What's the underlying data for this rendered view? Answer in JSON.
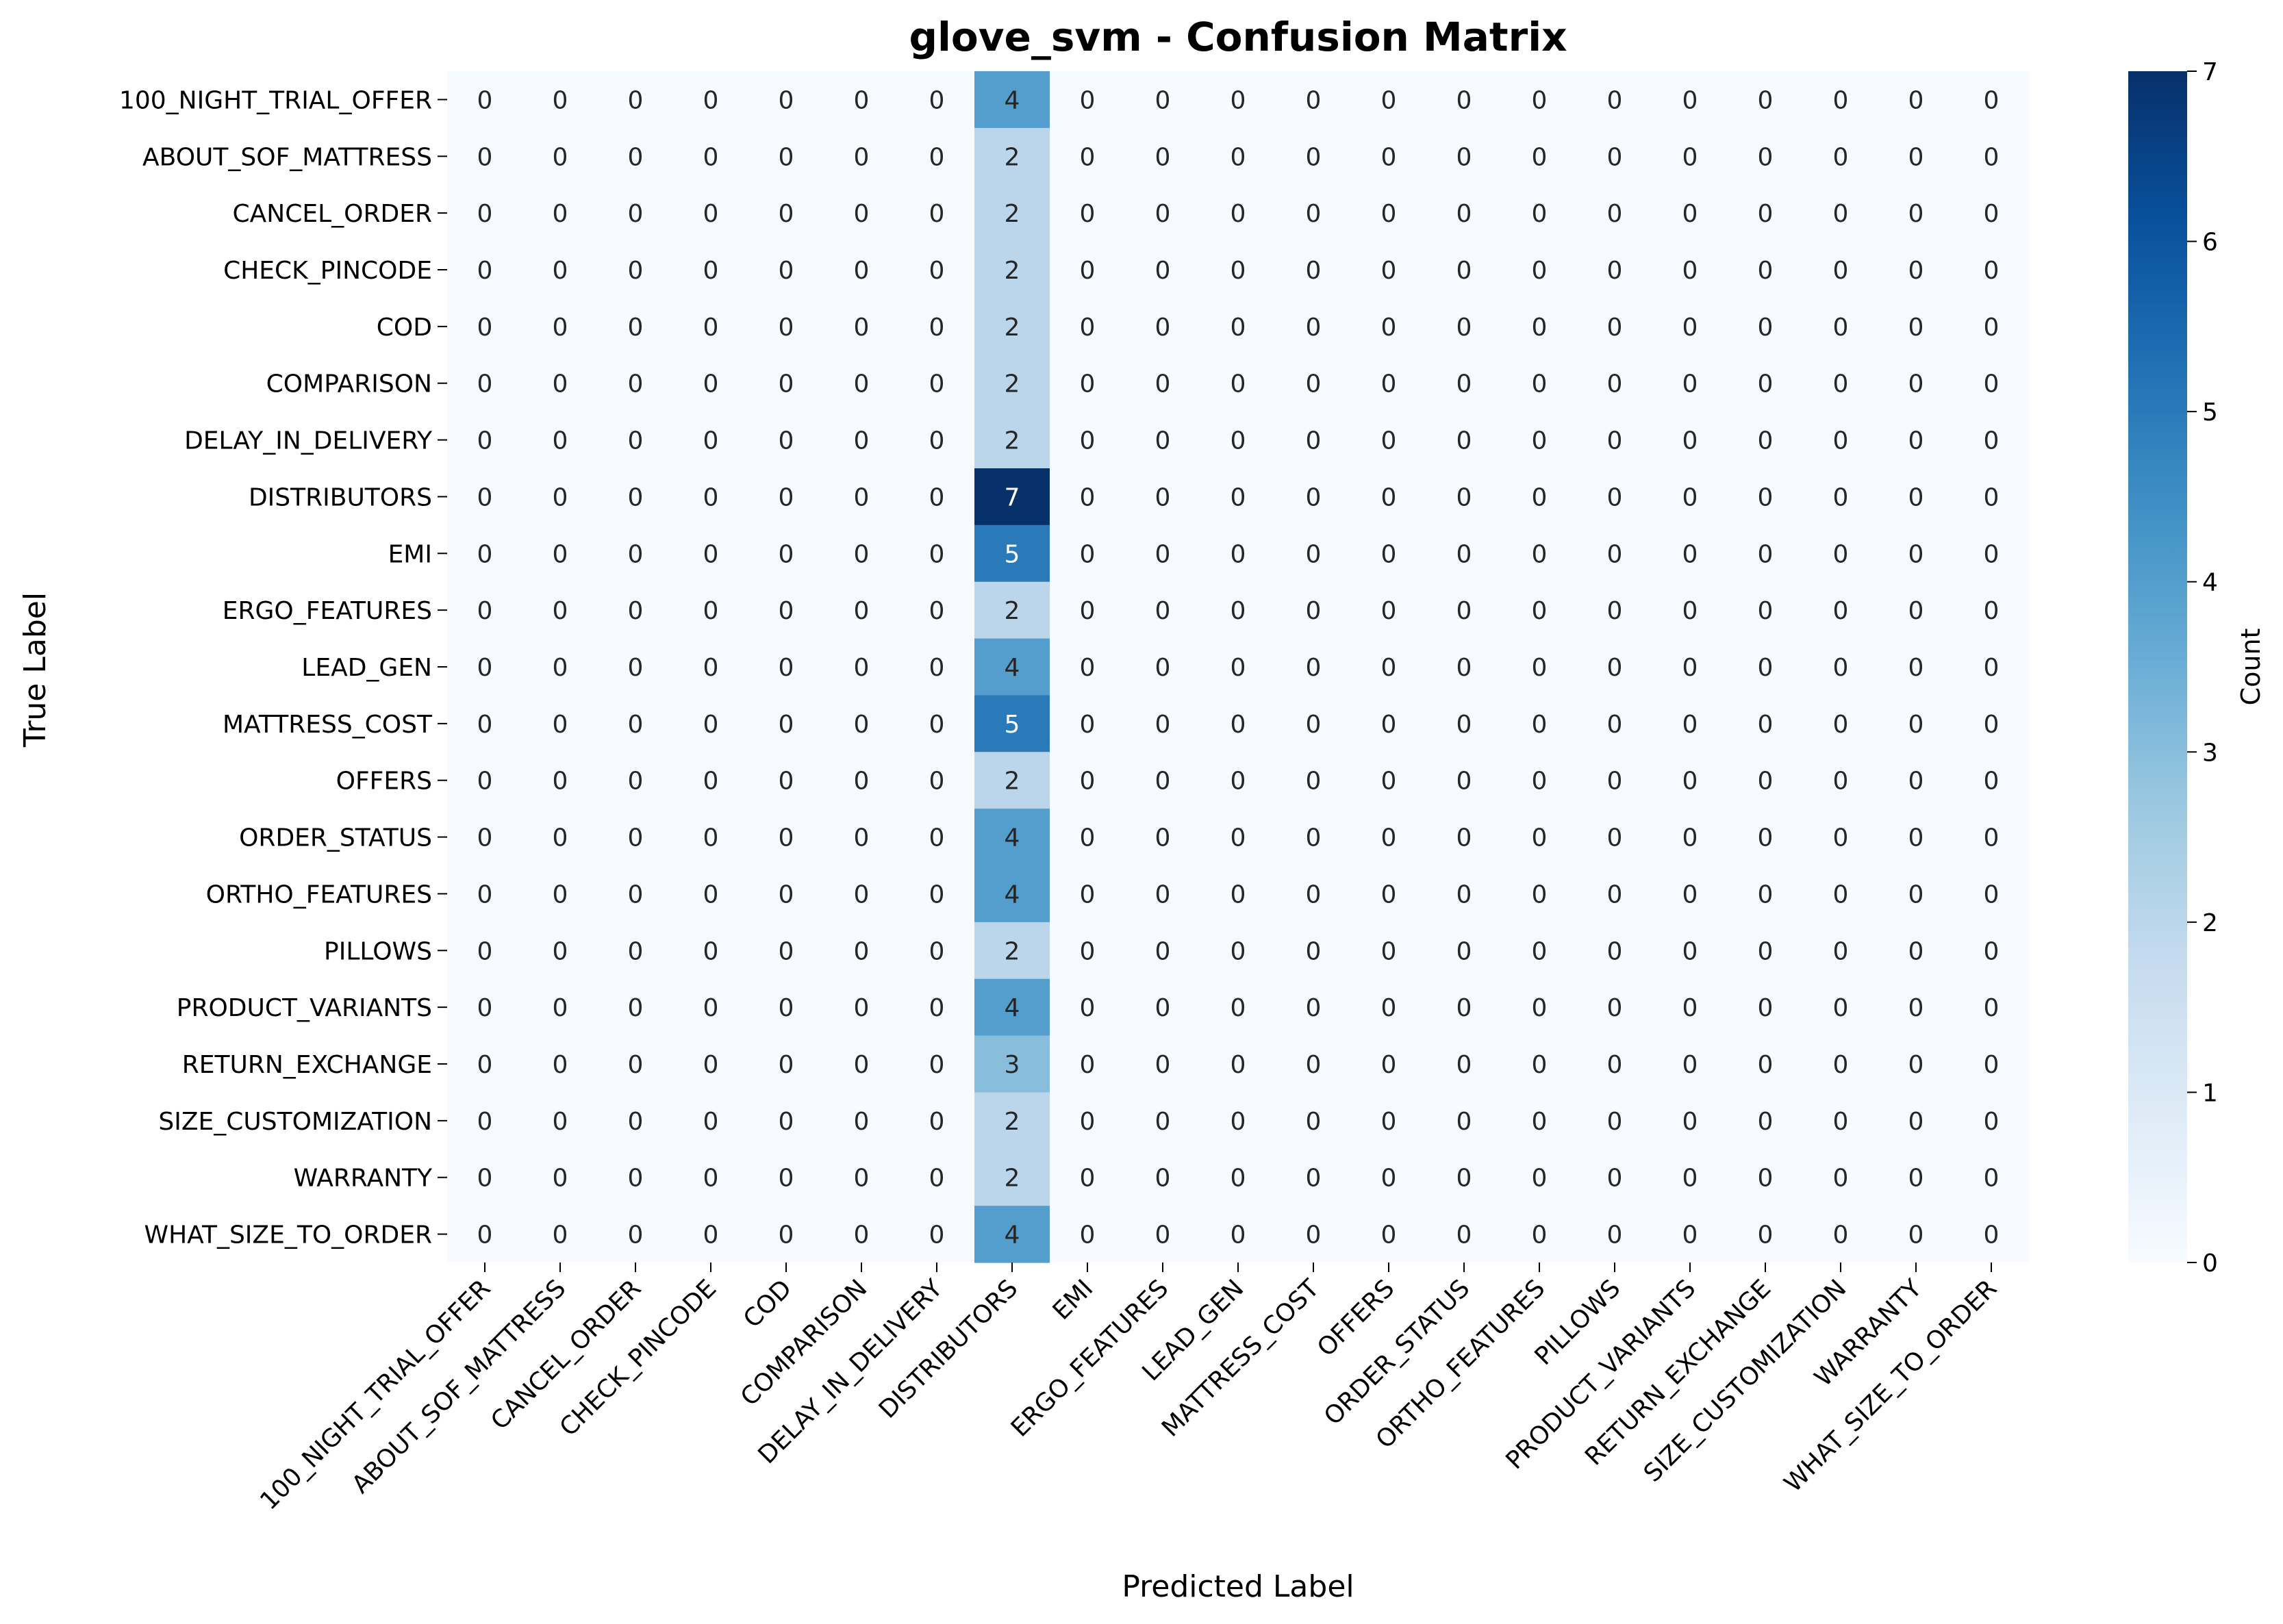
{
  "chart_data": {
    "type": "heatmap",
    "title": "glove_svm - Confusion Matrix",
    "xlabel": "Predicted Label",
    "ylabel": "True Label",
    "labels": [
      "100_NIGHT_TRIAL_OFFER",
      "ABOUT_SOF_MATTRESS",
      "CANCEL_ORDER",
      "CHECK_PINCODE",
      "COD",
      "COMPARISON",
      "DELAY_IN_DELIVERY",
      "DISTRIBUTORS",
      "EMI",
      "ERGO_FEATURES",
      "LEAD_GEN",
      "MATTRESS_COST",
      "OFFERS",
      "ORDER_STATUS",
      "ORTHO_FEATURES",
      "PILLOWS",
      "PRODUCT_VARIANTS",
      "RETURN_EXCHANGE",
      "SIZE_CUSTOMIZATION",
      "WARRANTY",
      "WHAT_SIZE_TO_ORDER"
    ],
    "values": [
      [
        0,
        0,
        0,
        0,
        0,
        0,
        0,
        4,
        0,
        0,
        0,
        0,
        0,
        0,
        0,
        0,
        0,
        0,
        0,
        0,
        0
      ],
      [
        0,
        0,
        0,
        0,
        0,
        0,
        0,
        2,
        0,
        0,
        0,
        0,
        0,
        0,
        0,
        0,
        0,
        0,
        0,
        0,
        0
      ],
      [
        0,
        0,
        0,
        0,
        0,
        0,
        0,
        2,
        0,
        0,
        0,
        0,
        0,
        0,
        0,
        0,
        0,
        0,
        0,
        0,
        0
      ],
      [
        0,
        0,
        0,
        0,
        0,
        0,
        0,
        2,
        0,
        0,
        0,
        0,
        0,
        0,
        0,
        0,
        0,
        0,
        0,
        0,
        0
      ],
      [
        0,
        0,
        0,
        0,
        0,
        0,
        0,
        2,
        0,
        0,
        0,
        0,
        0,
        0,
        0,
        0,
        0,
        0,
        0,
        0,
        0
      ],
      [
        0,
        0,
        0,
        0,
        0,
        0,
        0,
        2,
        0,
        0,
        0,
        0,
        0,
        0,
        0,
        0,
        0,
        0,
        0,
        0,
        0
      ],
      [
        0,
        0,
        0,
        0,
        0,
        0,
        0,
        2,
        0,
        0,
        0,
        0,
        0,
        0,
        0,
        0,
        0,
        0,
        0,
        0,
        0
      ],
      [
        0,
        0,
        0,
        0,
        0,
        0,
        0,
        7,
        0,
        0,
        0,
        0,
        0,
        0,
        0,
        0,
        0,
        0,
        0,
        0,
        0
      ],
      [
        0,
        0,
        0,
        0,
        0,
        0,
        0,
        5,
        0,
        0,
        0,
        0,
        0,
        0,
        0,
        0,
        0,
        0,
        0,
        0,
        0
      ],
      [
        0,
        0,
        0,
        0,
        0,
        0,
        0,
        2,
        0,
        0,
        0,
        0,
        0,
        0,
        0,
        0,
        0,
        0,
        0,
        0,
        0
      ],
      [
        0,
        0,
        0,
        0,
        0,
        0,
        0,
        4,
        0,
        0,
        0,
        0,
        0,
        0,
        0,
        0,
        0,
        0,
        0,
        0,
        0
      ],
      [
        0,
        0,
        0,
        0,
        0,
        0,
        0,
        5,
        0,
        0,
        0,
        0,
        0,
        0,
        0,
        0,
        0,
        0,
        0,
        0,
        0
      ],
      [
        0,
        0,
        0,
        0,
        0,
        0,
        0,
        2,
        0,
        0,
        0,
        0,
        0,
        0,
        0,
        0,
        0,
        0,
        0,
        0,
        0
      ],
      [
        0,
        0,
        0,
        0,
        0,
        0,
        0,
        4,
        0,
        0,
        0,
        0,
        0,
        0,
        0,
        0,
        0,
        0,
        0,
        0,
        0
      ],
      [
        0,
        0,
        0,
        0,
        0,
        0,
        0,
        4,
        0,
        0,
        0,
        0,
        0,
        0,
        0,
        0,
        0,
        0,
        0,
        0,
        0
      ],
      [
        0,
        0,
        0,
        0,
        0,
        0,
        0,
        2,
        0,
        0,
        0,
        0,
        0,
        0,
        0,
        0,
        0,
        0,
        0,
        0,
        0
      ],
      [
        0,
        0,
        0,
        0,
        0,
        0,
        0,
        4,
        0,
        0,
        0,
        0,
        0,
        0,
        0,
        0,
        0,
        0,
        0,
        0,
        0
      ],
      [
        0,
        0,
        0,
        0,
        0,
        0,
        0,
        3,
        0,
        0,
        0,
        0,
        0,
        0,
        0,
        0,
        0,
        0,
        0,
        0,
        0
      ],
      [
        0,
        0,
        0,
        0,
        0,
        0,
        0,
        2,
        0,
        0,
        0,
        0,
        0,
        0,
        0,
        0,
        0,
        0,
        0,
        0,
        0
      ],
      [
        0,
        0,
        0,
        0,
        0,
        0,
        0,
        2,
        0,
        0,
        0,
        0,
        0,
        0,
        0,
        0,
        0,
        0,
        0,
        0,
        0
      ],
      [
        0,
        0,
        0,
        0,
        0,
        0,
        0,
        4,
        0,
        0,
        0,
        0,
        0,
        0,
        0,
        0,
        0,
        0,
        0,
        0,
        0
      ]
    ],
    "colorbar": {
      "label": "Count",
      "range": [
        0,
        7
      ],
      "ticks": [
        0,
        1,
        2,
        3,
        4,
        5,
        6,
        7
      ],
      "colormap": "Blues",
      "colors": [
        "#f7fbff",
        "#deebf7",
        "#c6dbef",
        "#9ecae1",
        "#6baed6",
        "#4292c6",
        "#2171b5",
        "#08519c",
        "#08306b"
      ]
    },
    "grid": false,
    "annotations": "cell counts shown in each cell"
  }
}
